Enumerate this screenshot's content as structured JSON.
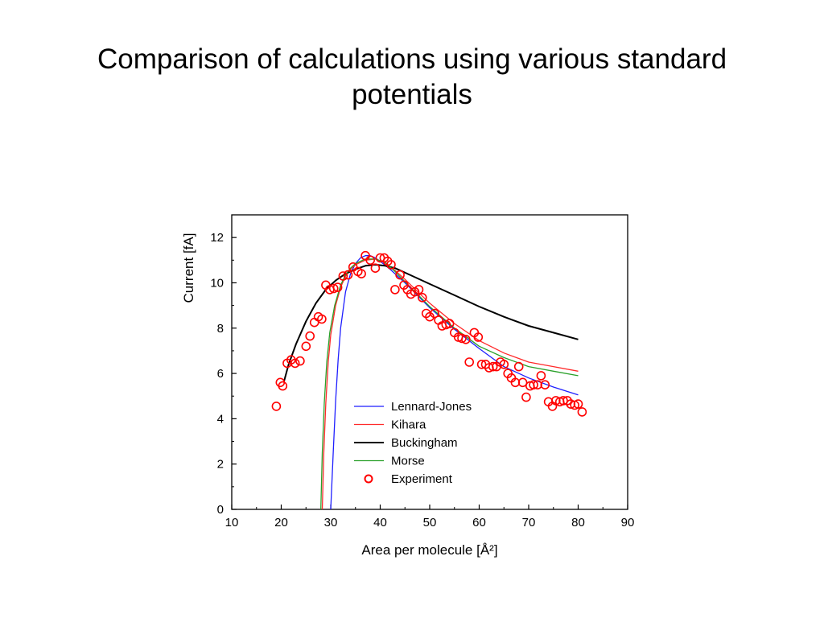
{
  "slide": {
    "title_line1": "Comparison of calculations using various standard",
    "title_line2": "potentials"
  },
  "chart_data": {
    "type": "line",
    "xlabel": "Area per molecule [Å²]",
    "ylabel": "Current [fA]",
    "xlim": [
      10,
      90
    ],
    "ylim": [
      0,
      13
    ],
    "xticks": [
      10,
      20,
      30,
      40,
      50,
      60,
      70,
      80,
      90
    ],
    "yticks": [
      0,
      2,
      4,
      6,
      8,
      10,
      12
    ],
    "grid": false,
    "legend_position": "bottom-center",
    "series": [
      {
        "name": "Lennard-Jones",
        "kind": "line",
        "color": "#1f1fff",
        "points": [
          [
            30.0,
            0.0
          ],
          [
            30.5,
            2.5
          ],
          [
            31.0,
            4.8
          ],
          [
            31.5,
            6.6
          ],
          [
            32.0,
            8.0
          ],
          [
            33.0,
            9.6
          ],
          [
            34.0,
            10.4
          ],
          [
            35.0,
            10.85
          ],
          [
            36.0,
            11.1
          ],
          [
            37.0,
            11.2
          ],
          [
            38.0,
            11.2
          ],
          [
            39.0,
            11.1
          ],
          [
            40.0,
            10.95
          ],
          [
            42.0,
            10.6
          ],
          [
            45.0,
            10.0
          ],
          [
            50.0,
            8.9
          ],
          [
            55.0,
            7.95
          ],
          [
            60.0,
            7.1
          ],
          [
            65.0,
            6.3
          ],
          [
            70.0,
            5.8
          ],
          [
            75.0,
            5.4
          ],
          [
            80.0,
            5.05
          ]
        ]
      },
      {
        "name": "Kihara",
        "kind": "line",
        "color": "#ff2a2a",
        "points": [
          [
            28.3,
            0.0
          ],
          [
            28.6,
            2.5
          ],
          [
            29.0,
            4.7
          ],
          [
            29.5,
            6.5
          ],
          [
            30.0,
            7.7
          ],
          [
            31.0,
            9.0
          ],
          [
            32.0,
            9.8
          ],
          [
            33.0,
            10.3
          ],
          [
            34.0,
            10.6
          ],
          [
            35.0,
            10.8
          ],
          [
            37.0,
            11.0
          ],
          [
            39.0,
            11.05
          ],
          [
            41.0,
            10.9
          ],
          [
            43.0,
            10.55
          ],
          [
            45.0,
            10.15
          ],
          [
            50.0,
            9.1
          ],
          [
            55.0,
            8.2
          ],
          [
            60.0,
            7.45
          ],
          [
            65.0,
            6.9
          ],
          [
            70.0,
            6.5
          ],
          [
            75.0,
            6.3
          ],
          [
            80.0,
            6.1
          ]
        ]
      },
      {
        "name": "Buckingham",
        "kind": "line",
        "color": "#000000",
        "points": [
          [
            20.5,
            5.6
          ],
          [
            21.5,
            6.4
          ],
          [
            23.0,
            7.3
          ],
          [
            25.0,
            8.3
          ],
          [
            27.0,
            9.1
          ],
          [
            29.0,
            9.7
          ],
          [
            31.0,
            10.1
          ],
          [
            33.0,
            10.4
          ],
          [
            35.0,
            10.6
          ],
          [
            37.0,
            10.75
          ],
          [
            39.0,
            10.8
          ],
          [
            41.0,
            10.75
          ],
          [
            43.0,
            10.65
          ],
          [
            45.0,
            10.45
          ],
          [
            50.0,
            9.95
          ],
          [
            55.0,
            9.45
          ],
          [
            60.0,
            8.95
          ],
          [
            65.0,
            8.5
          ],
          [
            70.0,
            8.1
          ],
          [
            75.0,
            7.8
          ],
          [
            80.0,
            7.5
          ]
        ]
      },
      {
        "name": "Morse",
        "kind": "line",
        "color": "#2aa02a",
        "points": [
          [
            28.0,
            0.0
          ],
          [
            28.3,
            2.5
          ],
          [
            28.7,
            4.7
          ],
          [
            29.2,
            6.5
          ],
          [
            29.8,
            7.8
          ],
          [
            30.8,
            9.0
          ],
          [
            32.0,
            9.9
          ],
          [
            33.0,
            10.35
          ],
          [
            34.0,
            10.65
          ],
          [
            35.0,
            10.85
          ],
          [
            37.0,
            11.05
          ],
          [
            39.0,
            11.05
          ],
          [
            41.0,
            10.9
          ],
          [
            43.0,
            10.5
          ],
          [
            45.0,
            10.05
          ],
          [
            50.0,
            8.95
          ],
          [
            55.0,
            8.0
          ],
          [
            60.0,
            7.2
          ],
          [
            65.0,
            6.7
          ],
          [
            70.0,
            6.3
          ],
          [
            75.0,
            6.1
          ],
          [
            80.0,
            5.9
          ]
        ]
      },
      {
        "name": "Experiment",
        "kind": "scatter",
        "color": "#ff0000",
        "points": [
          [
            19.0,
            4.55
          ],
          [
            19.8,
            5.6
          ],
          [
            20.3,
            5.45
          ],
          [
            21.2,
            6.45
          ],
          [
            22.0,
            6.6
          ],
          [
            22.8,
            6.45
          ],
          [
            23.8,
            6.55
          ],
          [
            25.0,
            7.2
          ],
          [
            25.8,
            7.65
          ],
          [
            26.7,
            8.25
          ],
          [
            27.5,
            8.5
          ],
          [
            28.2,
            8.4
          ],
          [
            29.0,
            9.9
          ],
          [
            29.8,
            9.7
          ],
          [
            30.6,
            9.75
          ],
          [
            31.4,
            9.8
          ],
          [
            32.5,
            10.3
          ],
          [
            33.5,
            10.35
          ],
          [
            34.5,
            10.7
          ],
          [
            35.5,
            10.5
          ],
          [
            36.2,
            10.4
          ],
          [
            37.0,
            11.2
          ],
          [
            38.0,
            11.0
          ],
          [
            39.0,
            10.65
          ],
          [
            40.0,
            11.1
          ],
          [
            40.8,
            11.1
          ],
          [
            41.5,
            10.95
          ],
          [
            42.2,
            10.8
          ],
          [
            43.0,
            9.7
          ],
          [
            44.0,
            10.35
          ],
          [
            44.8,
            9.9
          ],
          [
            45.5,
            9.7
          ],
          [
            46.2,
            9.5
          ],
          [
            47.0,
            9.6
          ],
          [
            47.8,
            9.7
          ],
          [
            48.5,
            9.35
          ],
          [
            49.3,
            8.65
          ],
          [
            50.0,
            8.5
          ],
          [
            51.0,
            8.65
          ],
          [
            51.8,
            8.35
          ],
          [
            52.5,
            8.1
          ],
          [
            53.3,
            8.15
          ],
          [
            54.0,
            8.2
          ],
          [
            55.0,
            7.8
          ],
          [
            55.8,
            7.6
          ],
          [
            56.5,
            7.55
          ],
          [
            57.3,
            7.5
          ],
          [
            58.0,
            6.5
          ],
          [
            59.0,
            7.8
          ],
          [
            59.8,
            7.6
          ],
          [
            60.5,
            6.4
          ],
          [
            61.3,
            6.4
          ],
          [
            62.0,
            6.25
          ],
          [
            62.8,
            6.3
          ],
          [
            63.5,
            6.3
          ],
          [
            64.3,
            6.5
          ],
          [
            65.0,
            6.4
          ],
          [
            65.8,
            6.0
          ],
          [
            66.5,
            5.8
          ],
          [
            67.3,
            5.6
          ],
          [
            68.0,
            6.3
          ],
          [
            68.8,
            5.6
          ],
          [
            69.5,
            4.95
          ],
          [
            70.3,
            5.45
          ],
          [
            71.0,
            5.5
          ],
          [
            71.8,
            5.5
          ],
          [
            72.5,
            5.9
          ],
          [
            73.3,
            5.5
          ],
          [
            74.0,
            4.75
          ],
          [
            74.8,
            4.55
          ],
          [
            75.5,
            4.8
          ],
          [
            76.3,
            4.75
          ],
          [
            77.0,
            4.8
          ],
          [
            77.8,
            4.8
          ],
          [
            78.5,
            4.65
          ],
          [
            79.3,
            4.6
          ],
          [
            80.0,
            4.65
          ],
          [
            80.8,
            4.3
          ]
        ]
      }
    ]
  }
}
